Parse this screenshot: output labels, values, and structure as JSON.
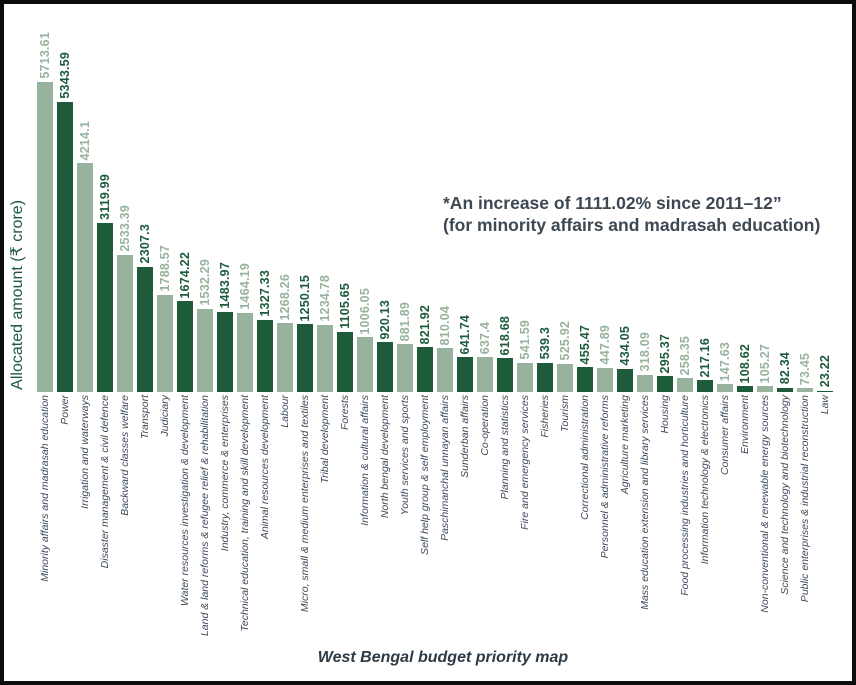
{
  "colors": {
    "bar_light": "#97B29D",
    "bar_dark": "#1E5B3A",
    "category_label": "#3D4A59",
    "annotation": "#3E4852",
    "title": "#2E3A46",
    "axis_label": "#1E5B3A",
    "frame_border": "#0c0c0c"
  },
  "chart_data": {
    "type": "bar",
    "title": "West Bengal budget priority map",
    "xlabel": "",
    "ylabel": "Allocated amount (₹ crore)",
    "ylim": [
      0,
      5713.61
    ],
    "grid": false,
    "legend_position": "none",
    "annotation": {
      "line1": "*An increase of 1111.02% since 2011–12”",
      "line2": "(for minority affairs and madrasah education)"
    },
    "bar_color_pattern": [
      "#97B29D",
      "#1E5B3A"
    ],
    "value_label_style": "rotated 90deg above each bar, colored same as bar",
    "categories": [
      "Minority affairs and madrasah education",
      "Power",
      "Irrigation and waterways",
      "Disaster management & civil defence",
      "Backward classes welfare",
      "Transport",
      "Judiciary",
      "Water resources investigation & development",
      "Land & land reforms & refugee relief & rehabilitation",
      "Industry, commerce & enterprises",
      "Technical education, training and skill development",
      "Animal resources development",
      "Labour",
      "Micro, small & medium enterprises and textiles",
      "Tribal development",
      "Forests",
      "Information & cultural affairs",
      "North bengal development",
      "Youth services and sports",
      "Self help group & self employment",
      "Paschimanchal unnayan affairs",
      "Sunderban affairs",
      "Co-operation",
      "Planning and statistics",
      "Fire and emergency services",
      "Fisheries",
      "Tourism",
      "Correctional administration",
      "Personnel & administrative reforms",
      "Agriculture marketing",
      "Mass education extension and library services",
      "Housing",
      "Food processing industries and horticulture",
      "Information technology & electronics",
      "Consumer affairs",
      "Environment",
      "Non-conventional & renewable energy sources",
      "Science and technology and biotechnology",
      "Public enterprises & industrial reconstruction",
      "Law"
    ],
    "values": [
      5713.61,
      5343.59,
      4214.1,
      3119.99,
      2533.39,
      2307.3,
      1788.57,
      1674.22,
      1532.29,
      1483.97,
      1464.19,
      1327.33,
      1268.26,
      1250.15,
      1234.78,
      1105.65,
      1006.05,
      920.13,
      881.89,
      821.92,
      810.04,
      641.74,
      637.4,
      618.68,
      541.59,
      539.3,
      525.92,
      455.47,
      447.89,
      434.05,
      318.09,
      295.37,
      258.35,
      217.16,
      147.63,
      108.62,
      105.27,
      82.34,
      73.45,
      23.22
    ]
  }
}
